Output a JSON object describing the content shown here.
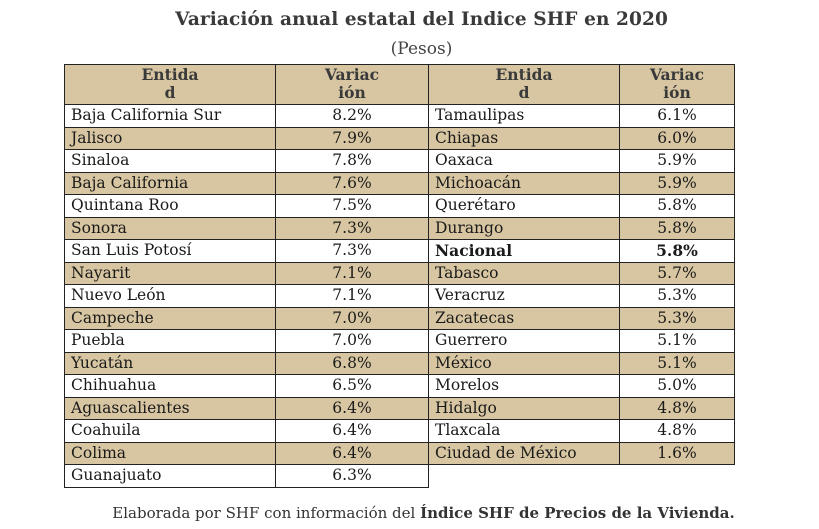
{
  "title": "Variación anual estatal del Indice SHF en 2020",
  "subtitle": "(Pesos)",
  "headers": {
    "entidad": "Entidad",
    "variacion": "Variación"
  },
  "chart_data": {
    "type": "table",
    "title": "Variación anual estatal del Indice SHF en 2020",
    "subtitle": "(Pesos)",
    "columns": [
      "Entidad",
      "Variación"
    ],
    "rows": [
      [
        "Baja California Sur",
        "8.2%"
      ],
      [
        "Jalisco",
        "7.9%"
      ],
      [
        "Sinaloa",
        "7.8%"
      ],
      [
        "Baja California",
        "7.6%"
      ],
      [
        "Quintana Roo",
        "7.5%"
      ],
      [
        "Sonora",
        "7.3%"
      ],
      [
        "San Luis Potosí",
        "7.3%"
      ],
      [
        "Nayarit",
        "7.1%"
      ],
      [
        "Nuevo León",
        "7.1%"
      ],
      [
        "Campeche",
        "7.0%"
      ],
      [
        "Puebla",
        "7.0%"
      ],
      [
        "Yucatán",
        "6.8%"
      ],
      [
        "Chihuahua",
        "6.5%"
      ],
      [
        "Aguascalientes",
        "6.4%"
      ],
      [
        "Coahuila",
        "6.4%"
      ],
      [
        "Colima",
        "6.4%"
      ],
      [
        "Guanajuato",
        "6.3%"
      ],
      [
        "Tamaulipas",
        "6.1%"
      ],
      [
        "Chiapas",
        "6.0%"
      ],
      [
        "Oaxaca",
        "5.9%"
      ],
      [
        "Michoacán",
        "5.9%"
      ],
      [
        "Querétaro",
        "5.8%"
      ],
      [
        "Durango",
        "5.8%"
      ],
      [
        "Nacional",
        "5.8%"
      ],
      [
        "Tabasco",
        "5.7%"
      ],
      [
        "Veracruz",
        "5.3%"
      ],
      [
        "Zacatecas",
        "5.3%"
      ],
      [
        "Guerrero",
        "5.1%"
      ],
      [
        "México",
        "5.1%"
      ],
      [
        "Morelos",
        "5.0%"
      ],
      [
        "Hidalgo",
        "4.8%"
      ],
      [
        "Tlaxcala",
        "4.8%"
      ],
      [
        "Ciudad de México",
        "1.6%"
      ]
    ],
    "layout_split_after": 17,
    "highlighted_row": "Nacional",
    "shading": "alternating rows, header shaded"
  },
  "colors": {
    "row_shade": "#d7c6a1",
    "border": "#222222",
    "text": "#1a1a1a"
  },
  "footer": {
    "prefix": "Elaborada por SHF con información del ",
    "bold": "Índice SHF de Precios de la Vivienda."
  }
}
